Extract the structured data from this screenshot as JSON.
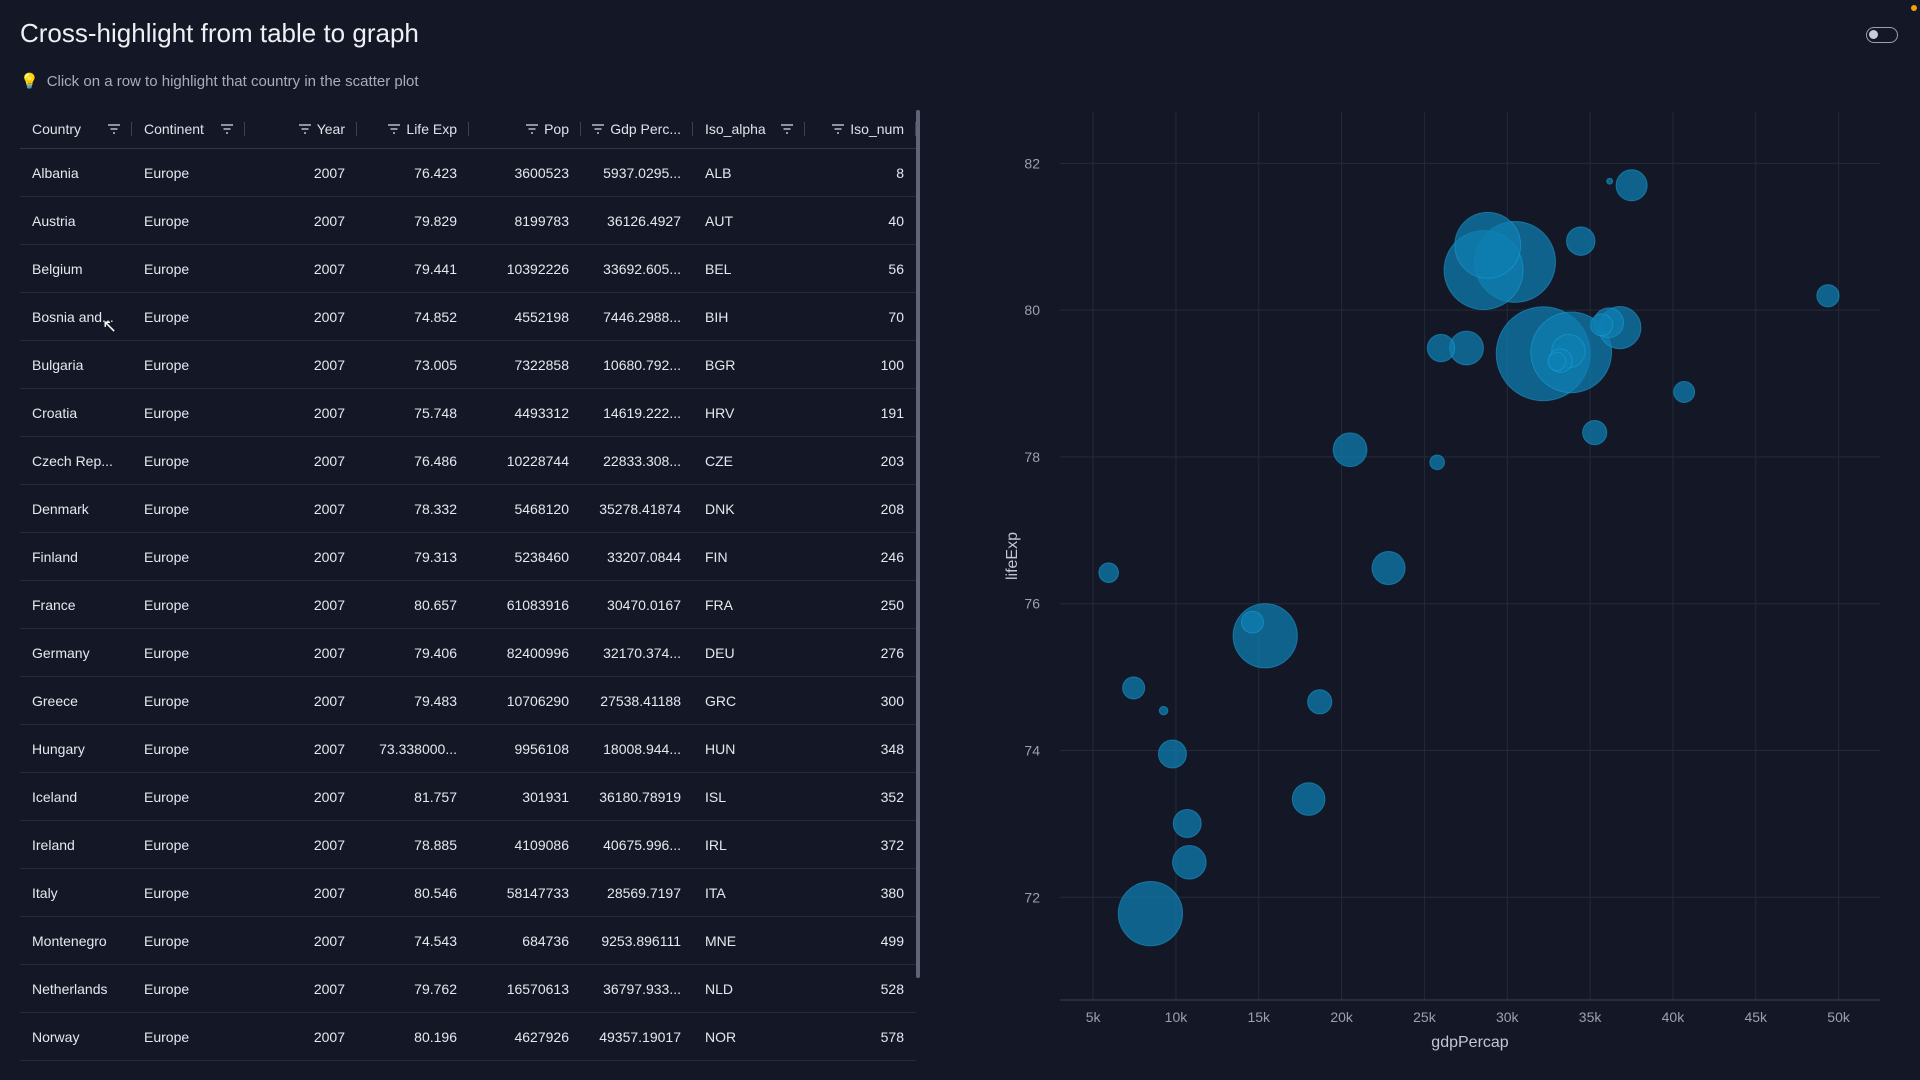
{
  "page": {
    "title": "Cross-highlight from table to graph",
    "hint_icon": "lightbulb-icon",
    "hint_text": "Click on a row to highlight that country in the scatter plot"
  },
  "table": {
    "columns": [
      "Country",
      "Continent",
      "Year",
      "Life Exp",
      "Pop",
      "Gdp Perc...",
      "Iso_alpha",
      "Iso_num"
    ],
    "rows": [
      [
        "Albania",
        "Europe",
        "2007",
        "76.423",
        "3600523",
        "5937.0295...",
        "ALB",
        "8"
      ],
      [
        "Austria",
        "Europe",
        "2007",
        "79.829",
        "8199783",
        "36126.4927",
        "AUT",
        "40"
      ],
      [
        "Belgium",
        "Europe",
        "2007",
        "79.441",
        "10392226",
        "33692.605...",
        "BEL",
        "56"
      ],
      [
        "Bosnia and...",
        "Europe",
        "2007",
        "74.852",
        "4552198",
        "7446.2988...",
        "BIH",
        "70"
      ],
      [
        "Bulgaria",
        "Europe",
        "2007",
        "73.005",
        "7322858",
        "10680.792...",
        "BGR",
        "100"
      ],
      [
        "Croatia",
        "Europe",
        "2007",
        "75.748",
        "4493312",
        "14619.222...",
        "HRV",
        "191"
      ],
      [
        "Czech Rep...",
        "Europe",
        "2007",
        "76.486",
        "10228744",
        "22833.308...",
        "CZE",
        "203"
      ],
      [
        "Denmark",
        "Europe",
        "2007",
        "78.332",
        "5468120",
        "35278.41874",
        "DNK",
        "208"
      ],
      [
        "Finland",
        "Europe",
        "2007",
        "79.313",
        "5238460",
        "33207.0844",
        "FIN",
        "246"
      ],
      [
        "France",
        "Europe",
        "2007",
        "80.657",
        "61083916",
        "30470.0167",
        "FRA",
        "250"
      ],
      [
        "Germany",
        "Europe",
        "2007",
        "79.406",
        "82400996",
        "32170.374...",
        "DEU",
        "276"
      ],
      [
        "Greece",
        "Europe",
        "2007",
        "79.483",
        "10706290",
        "27538.41188",
        "GRC",
        "300"
      ],
      [
        "Hungary",
        "Europe",
        "2007",
        "73.338000...",
        "9956108",
        "18008.944...",
        "HUN",
        "348"
      ],
      [
        "Iceland",
        "Europe",
        "2007",
        "81.757",
        "301931",
        "36180.78919",
        "ISL",
        "352"
      ],
      [
        "Ireland",
        "Europe",
        "2007",
        "78.885",
        "4109086",
        "40675.996...",
        "IRL",
        "372"
      ],
      [
        "Italy",
        "Europe",
        "2007",
        "80.546",
        "58147733",
        "28569.7197",
        "ITA",
        "380"
      ],
      [
        "Montenegro",
        "Europe",
        "2007",
        "74.543",
        "684736",
        "9253.896111",
        "MNE",
        "499"
      ],
      [
        "Netherlands",
        "Europe",
        "2007",
        "79.762",
        "16570613",
        "36797.933...",
        "NLD",
        "528"
      ],
      [
        "Norway",
        "Europe",
        "2007",
        "80.196",
        "4627926",
        "49357.19017",
        "NOR",
        "578"
      ]
    ]
  },
  "chart_data": {
    "type": "scatter",
    "xlabel": "gdpPercap",
    "ylabel": "lifeExp",
    "xlim": [
      3000,
      52500
    ],
    "ylim": [
      70.6,
      82.7
    ],
    "x_ticks": [
      5000,
      10000,
      15000,
      20000,
      25000,
      30000,
      35000,
      40000,
      45000,
      50000
    ],
    "x_tick_labels": [
      "5k",
      "10k",
      "15k",
      "20k",
      "25k",
      "30k",
      "35k",
      "40k",
      "45k",
      "50k"
    ],
    "y_ticks": [
      72,
      74,
      76,
      78,
      80,
      82
    ],
    "y_tick_labels": [
      "72",
      "74",
      "76",
      "78",
      "80",
      "82"
    ],
    "grid": true,
    "bubble_color": "#0e7fb3",
    "points": [
      {
        "x": 5937,
        "y": 76.423,
        "size": 3600523
      },
      {
        "x": 36126,
        "y": 79.829,
        "size": 8199783
      },
      {
        "x": 33693,
        "y": 79.441,
        "size": 10392226
      },
      {
        "x": 7446,
        "y": 74.852,
        "size": 4552198
      },
      {
        "x": 10681,
        "y": 73.005,
        "size": 7322858
      },
      {
        "x": 14619,
        "y": 75.748,
        "size": 4493312
      },
      {
        "x": 22833,
        "y": 76.486,
        "size": 10228744
      },
      {
        "x": 35278,
        "y": 78.332,
        "size": 5468120
      },
      {
        "x": 33207,
        "y": 79.313,
        "size": 5238460
      },
      {
        "x": 30470,
        "y": 80.657,
        "size": 61083916
      },
      {
        "x": 32170,
        "y": 79.406,
        "size": 82400996
      },
      {
        "x": 27538,
        "y": 79.483,
        "size": 10706290
      },
      {
        "x": 18009,
        "y": 73.338,
        "size": 9956108
      },
      {
        "x": 36181,
        "y": 81.757,
        "size": 301931
      },
      {
        "x": 40676,
        "y": 78.885,
        "size": 4109086
      },
      {
        "x": 28570,
        "y": 80.546,
        "size": 58147733
      },
      {
        "x": 9254,
        "y": 74.543,
        "size": 684736
      },
      {
        "x": 36798,
        "y": 79.762,
        "size": 16570613
      },
      {
        "x": 49357,
        "y": 80.196,
        "size": 4627926
      },
      {
        "x": 8459,
        "y": 71.777,
        "size": 38518241
      },
      {
        "x": 10808,
        "y": 72.476,
        "size": 10538243
      },
      {
        "x": 15390,
        "y": 75.563,
        "size": 38518241
      },
      {
        "x": 9787,
        "y": 73.952,
        "size": 7322858
      },
      {
        "x": 18678,
        "y": 74.663,
        "size": 5447502
      },
      {
        "x": 25768,
        "y": 77.926,
        "size": 2009245
      },
      {
        "x": 20510,
        "y": 78.098,
        "size": 10642836
      },
      {
        "x": 28821,
        "y": 80.884,
        "size": 40448191
      },
      {
        "x": 34435,
        "y": 80.941,
        "size": 7554661
      },
      {
        "x": 37506,
        "y": 81.701,
        "size": 9031088
      },
      {
        "x": 26000,
        "y": 79.483,
        "size": 7000000
      },
      {
        "x": 33859,
        "y": 79.425,
        "size": 60776238
      },
      {
        "x": 33000,
        "y": 79.3,
        "size": 3000000
      },
      {
        "x": 35700,
        "y": 79.8,
        "size": 4500000
      }
    ]
  }
}
